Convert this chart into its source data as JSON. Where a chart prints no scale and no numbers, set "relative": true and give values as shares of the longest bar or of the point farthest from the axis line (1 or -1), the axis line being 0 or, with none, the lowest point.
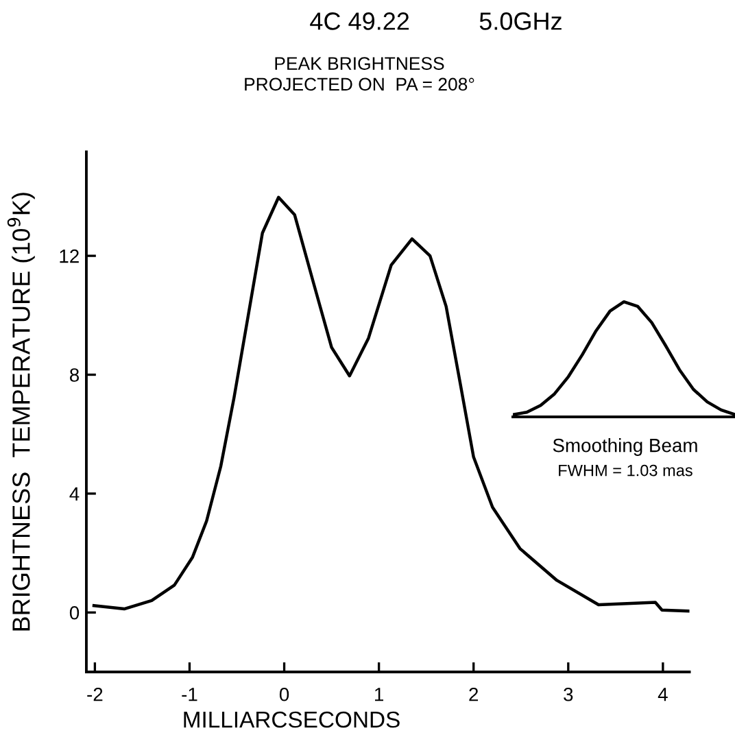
{
  "chart_data": [
    {
      "type": "line",
      "title": "4C 49.22          5.0GHz",
      "subtitle": "PEAK BRIGHTNESS\nPROJECTED ON  PA = 208°",
      "xlabel": "MILLIARCSECONDS",
      "ylabel": "BRIGHTNESS  TEMPERATURE (10$^{9}$K)",
      "xlim": [
        -2.09,
        4.28
      ],
      "ylim": [
        -2,
        15.5
      ],
      "xticks": [
        -2,
        -1,
        0,
        1,
        2,
        3,
        4
      ],
      "yticks": [
        0,
        4,
        8,
        12
      ],
      "grid": false,
      "legend": false,
      "marker": "none",
      "line_style": "solid",
      "series": [
        {
          "color": "#000000",
          "x": [
            -2.01,
            -1.69,
            -1.4,
            -1.16,
            -0.97,
            -0.82,
            -0.67,
            -0.53,
            -0.38,
            -0.23,
            -0.06,
            0.11,
            0.31,
            0.5,
            0.69,
            0.89,
            1.13,
            1.35,
            1.54,
            1.71,
            1.86,
            2.0,
            2.2,
            2.49,
            2.88,
            3.32,
            3.92,
            3.99,
            4.27
          ],
          "values": [
            0.23,
            0.12,
            0.4,
            0.92,
            1.85,
            3.08,
            4.92,
            7.23,
            10.0,
            12.77,
            13.97,
            13.38,
            11.08,
            8.92,
            7.96,
            9.23,
            11.69,
            12.57,
            12.0,
            10.3,
            7.69,
            5.23,
            3.54,
            2.15,
            1.08,
            0.26,
            0.34,
            0.08,
            0.05
          ]
        }
      ]
    },
    {
      "type": "line",
      "relative": true,
      "annotations": [
        "Smoothing Beam",
        "FWHM = 1.03 mas"
      ],
      "categories": [
        null,
        null,
        null,
        null,
        null,
        null,
        null,
        null,
        null,
        null,
        null,
        null,
        null,
        null,
        null,
        null,
        null
      ],
      "marker": "none",
      "line_style": "solid",
      "series": [
        {
          "color": "#000000",
          "values": [
            0.02,
            0.04,
            0.1,
            0.2,
            0.35,
            0.54,
            0.75,
            0.92,
            1.0,
            0.96,
            0.82,
            0.62,
            0.41,
            0.24,
            0.13,
            0.06,
            0.02
          ]
        }
      ]
    }
  ]
}
